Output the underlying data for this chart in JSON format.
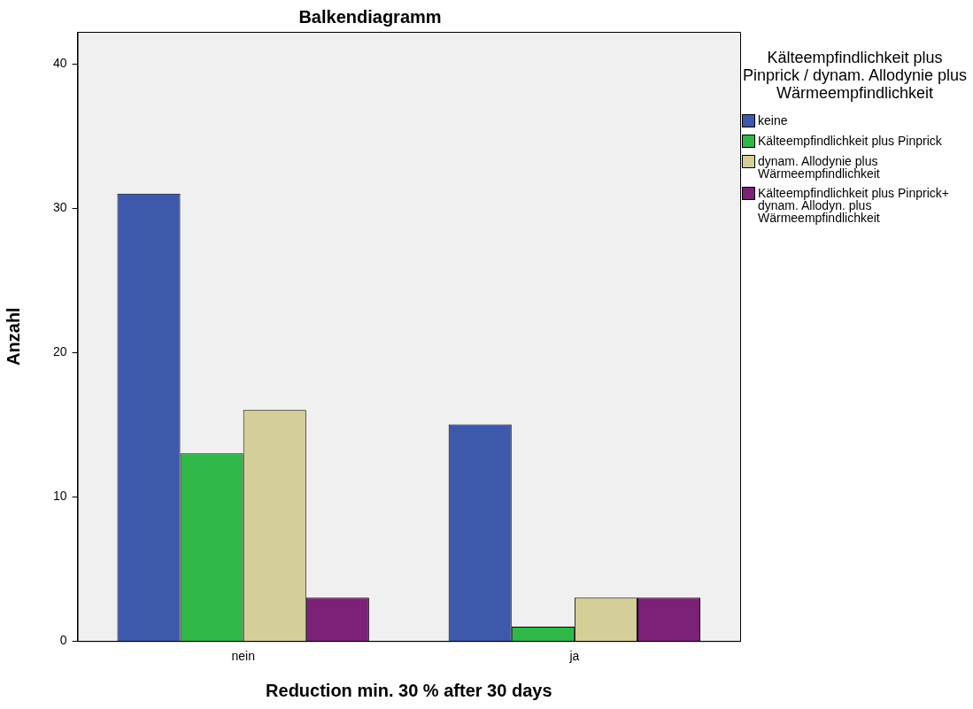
{
  "chart_data": {
    "type": "bar",
    "title": "Balkendiagramm",
    "xlabel": "Reduction min. 30 % after 30 days",
    "ylabel": "Anzahl",
    "legend_title": "Kälteempfindlichkeit plus Pinprick / dynam. Allodynie plus Wärmeempfindlichkeit",
    "categories": [
      "nein",
      "ja"
    ],
    "series": [
      {
        "name": "keine",
        "color": "#3e58ac",
        "values": [
          31,
          15
        ]
      },
      {
        "name": "Kälteempfindlichkeit plus Pinprick",
        "color": "#2fb847",
        "values": [
          13,
          1
        ]
      },
      {
        "name": "dynam. Allodynie plus Wärmeempfindlichkeit",
        "color": "#d4cf98",
        "values": [
          16,
          3
        ]
      },
      {
        "name": "Kälteempfindlichkeit plus Pinprick+ dynam. Allodyn. plus Wärmeempfindlichkeit",
        "color": "#7b2176",
        "values": [
          3,
          3
        ]
      }
    ],
    "ylim": [
      0,
      42.2
    ],
    "yticks": [
      0,
      10,
      20,
      30,
      40
    ],
    "grid": false,
    "legend": "right"
  }
}
